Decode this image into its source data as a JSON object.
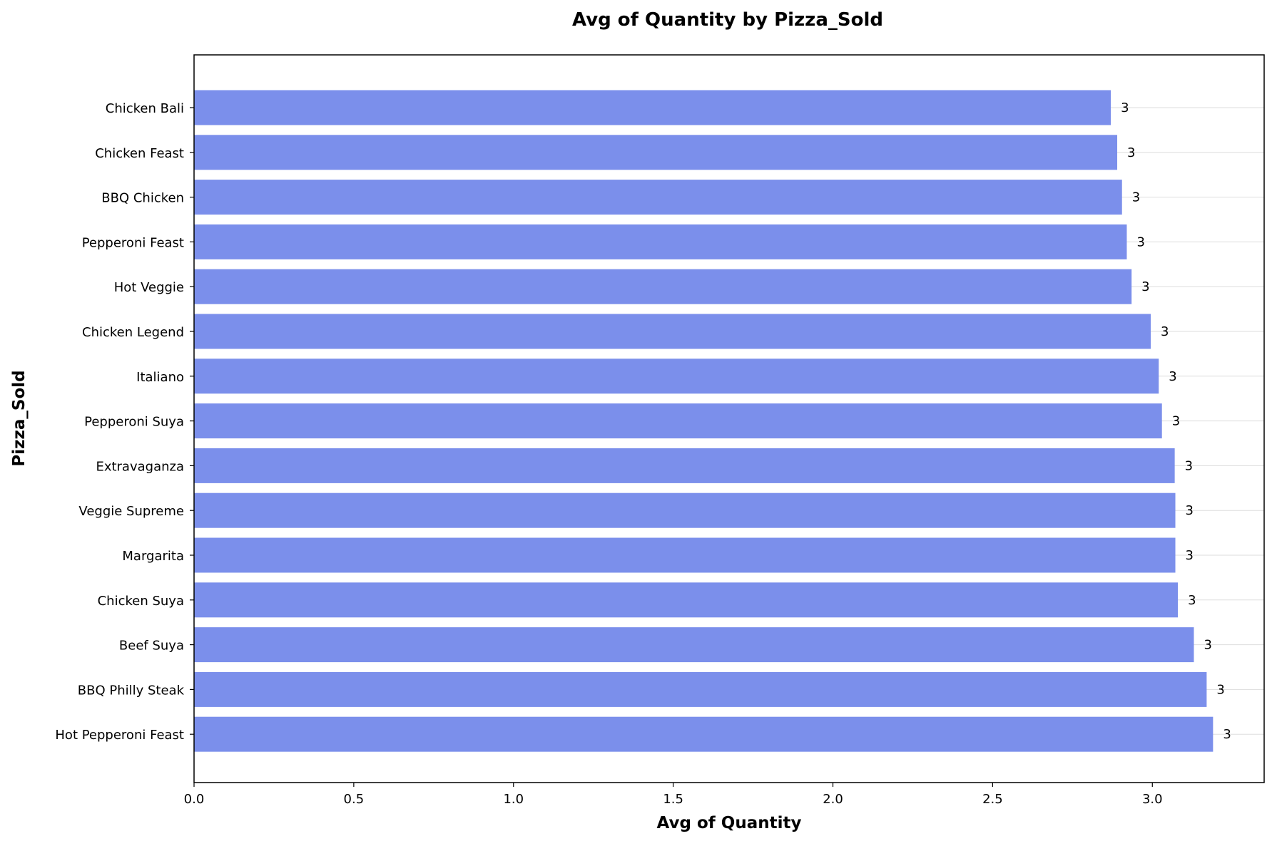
{
  "chart_data": {
    "type": "bar",
    "orientation": "horizontal",
    "title": "Avg of Quantity by Pizza_Sold",
    "xlabel": "Avg of Quantity",
    "ylabel": "Pizza_Sold",
    "xlim": [
      0,
      3.35
    ],
    "xticks": [
      0.0,
      0.5,
      1.0,
      1.5,
      2.0,
      2.5,
      3.0
    ],
    "xtick_labels": [
      "0.0",
      "0.5",
      "1.0",
      "1.5",
      "2.0",
      "2.5",
      "3.0"
    ],
    "grid": "horizontal-light",
    "bar_color": "#7b8feb",
    "categories": [
      "Chicken Bali",
      "Chicken Feast",
      "BBQ Chicken",
      "Pepperoni Feast",
      "Hot Veggie",
      "Chicken Legend",
      "Italiano",
      "Pepperoni Suya",
      "Extravaganza",
      "Veggie Supreme",
      "Margarita",
      "Chicken Suya",
      "Beef Suya",
      "BBQ Philly Steak",
      "Hot Pepperoni Feast"
    ],
    "values": [
      2.87,
      2.89,
      2.905,
      2.92,
      2.935,
      2.995,
      3.02,
      3.03,
      3.07,
      3.072,
      3.072,
      3.08,
      3.13,
      3.17,
      3.19
    ],
    "data_labels": [
      "3",
      "3",
      "3",
      "3",
      "3",
      "3",
      "3",
      "3",
      "3",
      "3",
      "3",
      "3",
      "3",
      "3",
      "3"
    ]
  }
}
